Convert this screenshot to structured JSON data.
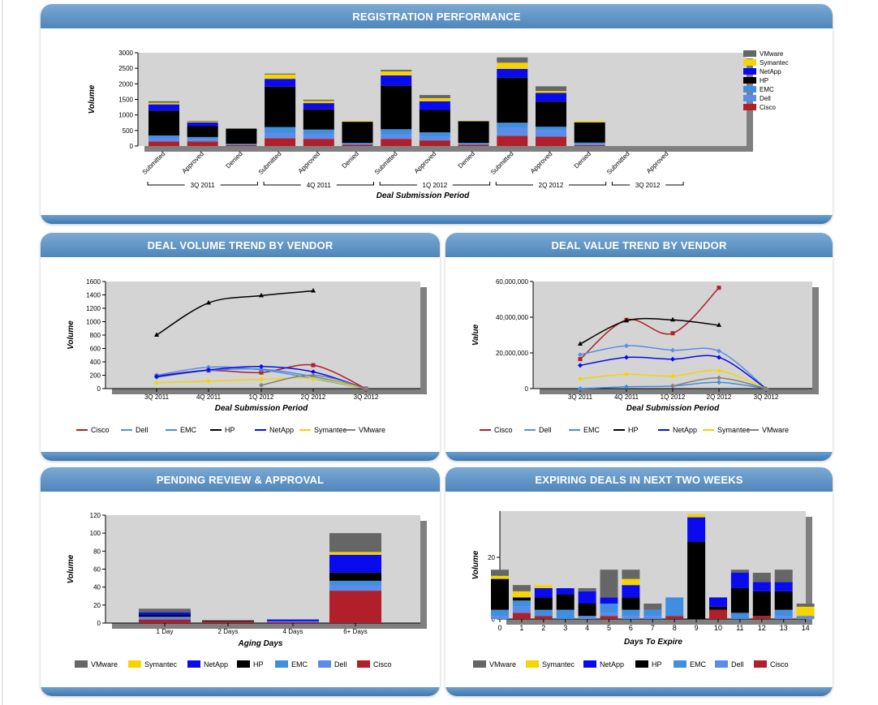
{
  "vendors": [
    "Cisco",
    "Dell",
    "EMC",
    "HP",
    "NetApp",
    "Symantec",
    "VMware"
  ],
  "colors": {
    "Cisco": "#b11f2b",
    "Dell": "#5a8de8",
    "EMC": "#3f8ee2",
    "HP": "#000000",
    "NetApp": "#0a0aee",
    "Symantec": "#f5d400",
    "VMware": "#666666"
  },
  "line_colors": {
    "Cisco": "#b11f2b",
    "Dell": "#5a8de8",
    "EMC": "#3f8ee2",
    "HP": "#000000",
    "NetApp": "#0a0aee",
    "Symantec": "#f5d400",
    "VMware": "#808080"
  },
  "panels": {
    "registration": {
      "title": "REGISTRATION PERFORMANCE"
    },
    "deal_volume": {
      "title": "DEAL VOLUME TREND BY VENDOR"
    },
    "deal_value": {
      "title": "DEAL VALUE TREND BY VENDOR"
    },
    "pending": {
      "title": "PENDING REVIEW & APPROVAL"
    },
    "expiring": {
      "title": "EXPIRING DEALS IN NEXT TWO WEEKS"
    }
  },
  "chart_data": [
    {
      "id": "registration",
      "type": "bar",
      "stacked": true,
      "ylabel": "Volume",
      "xlabel": "Deal Submission Period",
      "ylim": [
        0,
        3000
      ],
      "yticks": [
        0,
        500,
        1000,
        1500,
        2000,
        2500,
        3000
      ],
      "categories": [
        "Submitted",
        "Approved",
        "Denied",
        "Submitted",
        "Approved",
        "Denied",
        "Submitted",
        "Approved",
        "Denied",
        "Submitted",
        "Approved",
        "Denied",
        "Submitted",
        "Approved"
      ],
      "groups": [
        {
          "label": "3Q 2011",
          "count": 3
        },
        {
          "label": "4Q 2011",
          "count": 3
        },
        {
          "label": "1Q 2012",
          "count": 3
        },
        {
          "label": "2Q 2012",
          "count": 3
        },
        {
          "label": "3Q 2012",
          "count": 2
        }
      ],
      "legend_order": [
        "VMware",
        "Symantec",
        "NetApp",
        "HP",
        "EMC",
        "Dell",
        "Cisco"
      ],
      "series": [
        {
          "name": "Cisco",
          "values": [
            150,
            150,
            30,
            250,
            230,
            40,
            230,
            180,
            40,
            330,
            300,
            30,
            0,
            0
          ]
        },
        {
          "name": "Dell",
          "values": [
            100,
            80,
            20,
            180,
            160,
            40,
            150,
            130,
            40,
            250,
            200,
            40,
            0,
            0
          ]
        },
        {
          "name": "EMC",
          "values": [
            90,
            60,
            20,
            180,
            140,
            20,
            160,
            130,
            20,
            170,
            120,
            40,
            0,
            0
          ]
        },
        {
          "name": "HP",
          "values": [
            800,
            350,
            490,
            1300,
            650,
            680,
            1400,
            720,
            700,
            1450,
            810,
            650,
            0,
            0
          ]
        },
        {
          "name": "NetApp",
          "values": [
            200,
            120,
            0,
            250,
            200,
            0,
            330,
            280,
            0,
            280,
            280,
            0,
            0,
            0
          ]
        },
        {
          "name": "Symantec",
          "values": [
            50,
            30,
            0,
            140,
            70,
            20,
            130,
            100,
            10,
            200,
            60,
            40,
            0,
            0
          ]
        },
        {
          "name": "VMware",
          "values": [
            50,
            20,
            0,
            30,
            40,
            0,
            50,
            100,
            0,
            170,
            150,
            0,
            0,
            0
          ]
        }
      ]
    },
    {
      "id": "deal_volume",
      "type": "line",
      "ylabel": "Volume",
      "xlabel": "Deal Submission Period",
      "x": [
        "3Q 2011",
        "4Q 2011",
        "1Q 2012",
        "2Q 2012",
        "3Q 2012"
      ],
      "ylim": [
        0,
        1600
      ],
      "yticks": [
        0,
        200,
        400,
        600,
        800,
        1000,
        1200,
        1400,
        1600
      ],
      "series": [
        {
          "name": "Cisco",
          "values": [
            190,
            270,
            240,
            350,
            0
          ]
        },
        {
          "name": "Dell",
          "values": [
            200,
            320,
            280,
            150,
            0
          ]
        },
        {
          "name": "EMC",
          "values": [
            170,
            270,
            290,
            180,
            0
          ]
        },
        {
          "name": "HP",
          "values": [
            800,
            1280,
            1390,
            1460,
            null
          ]
        },
        {
          "name": "NetApp",
          "values": [
            180,
            280,
            330,
            250,
            0
          ]
        },
        {
          "name": "Symantec",
          "values": [
            90,
            110,
            140,
            150,
            0
          ]
        },
        {
          "name": "VMware",
          "values": [
            null,
            null,
            50,
            200,
            0
          ]
        }
      ]
    },
    {
      "id": "deal_value",
      "type": "line",
      "ylabel": "Value",
      "xlabel": "Deal Submission Period",
      "x": [
        "3Q 2011",
        "4Q 2011",
        "1Q 2012",
        "2Q 2012",
        "3Q 2012"
      ],
      "ylim": [
        0,
        60000000
      ],
      "yticks": [
        0,
        20000000,
        40000000,
        60000000
      ],
      "ytick_labels": [
        "0",
        "20,000,000",
        "40,000,000",
        "60,000,000"
      ],
      "series": [
        {
          "name": "Cisco",
          "values": [
            16500000,
            38500000,
            31000000,
            56500000,
            null
          ]
        },
        {
          "name": "Dell",
          "values": [
            19000000,
            24000000,
            21500000,
            21000000,
            0
          ]
        },
        {
          "name": "EMC",
          "values": [
            0,
            1000000,
            1500000,
            3500000,
            0
          ]
        },
        {
          "name": "HP",
          "values": [
            25000000,
            38000000,
            38500000,
            35500000,
            null
          ]
        },
        {
          "name": "NetApp",
          "values": [
            13000000,
            17500000,
            16500000,
            17500000,
            0
          ]
        },
        {
          "name": "Symantec",
          "values": [
            5500000,
            8000000,
            7000000,
            10000000,
            0
          ]
        },
        {
          "name": "VMware",
          "values": [
            null,
            null,
            1500000,
            6000000,
            0
          ]
        }
      ]
    },
    {
      "id": "pending",
      "type": "bar",
      "stacked": true,
      "ylabel": "Volume",
      "xlabel": "Aging Days",
      "categories": [
        "1 Day",
        "2 Days",
        "4 Days",
        "6+ Days"
      ],
      "ylim": [
        0,
        120
      ],
      "yticks": [
        0,
        20,
        40,
        60,
        80,
        100,
        120
      ],
      "legend_order": [
        "VMware",
        "Symantec",
        "NetApp",
        "HP",
        "EMC",
        "Dell",
        "Cisco"
      ],
      "series": [
        {
          "name": "Cisco",
          "values": [
            4,
            2,
            1,
            36
          ]
        },
        {
          "name": "Dell",
          "values": [
            2,
            0,
            1,
            6
          ]
        },
        {
          "name": "EMC",
          "values": [
            1,
            0,
            0,
            5
          ]
        },
        {
          "name": "HP",
          "values": [
            2,
            1,
            0,
            9
          ]
        },
        {
          "name": "NetApp",
          "values": [
            3,
            0,
            2,
            20
          ]
        },
        {
          "name": "Symantec",
          "values": [
            0,
            0,
            0,
            3
          ]
        },
        {
          "name": "VMware",
          "values": [
            4,
            0,
            0,
            21
          ]
        }
      ]
    },
    {
      "id": "expiring",
      "type": "bar",
      "stacked": true,
      "ylabel": "Volume",
      "xlabel": "Days To Expire",
      "categories": [
        "0",
        "1",
        "2",
        "3",
        "4",
        "5",
        "6",
        "7",
        "8",
        "9",
        "10",
        "11",
        "12",
        "13",
        "14"
      ],
      "ylim": [
        0,
        35
      ],
      "yticks": [
        0,
        20
      ],
      "legend_order": [
        "VMware",
        "Symantec",
        "NetApp",
        "HP",
        "EMC",
        "Dell",
        "Cisco"
      ],
      "series": [
        {
          "name": "Cisco",
          "values": [
            0,
            2,
            1,
            0,
            0,
            1,
            0,
            0,
            1,
            0,
            3,
            0,
            1,
            0,
            0
          ]
        },
        {
          "name": "Dell",
          "values": [
            1,
            2,
            0,
            0,
            1,
            1,
            1,
            1,
            0,
            0,
            0,
            0,
            0,
            1,
            1
          ]
        },
        {
          "name": "EMC",
          "values": [
            2,
            2,
            2,
            3,
            0,
            3,
            2,
            2,
            6,
            0,
            0,
            2,
            0,
            2,
            0
          ]
        },
        {
          "name": "HP",
          "values": [
            10,
            1,
            4,
            5,
            4,
            0,
            4,
            0,
            0,
            25,
            1,
            8,
            8,
            6,
            0
          ]
        },
        {
          "name": "NetApp",
          "values": [
            0,
            0,
            3,
            2,
            4,
            2,
            4,
            0,
            0,
            8,
            3,
            5,
            3,
            3,
            0
          ]
        },
        {
          "name": "Symantec",
          "values": [
            1,
            2,
            1,
            0,
            0,
            0,
            2,
            0,
            0,
            1,
            0,
            0,
            0,
            0,
            3
          ]
        },
        {
          "name": "VMware",
          "values": [
            2,
            2,
            0,
            0,
            1,
            9,
            3,
            2,
            0,
            0,
            0,
            1,
            3,
            4,
            1
          ]
        }
      ]
    }
  ]
}
